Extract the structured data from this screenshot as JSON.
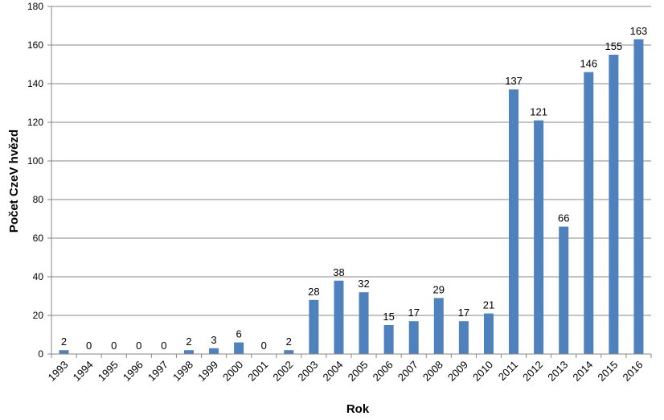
{
  "chart_data": {
    "type": "bar",
    "title": "",
    "xlabel": "Rok",
    "ylabel": "Počet CzeV hvězd",
    "ylim": [
      0,
      180
    ],
    "yticks": [
      "0",
      "20",
      "40",
      "60",
      "80",
      "100",
      "120",
      "140",
      "160",
      "180"
    ],
    "grid": "horizontal",
    "bar_color": "#4f81bd",
    "categories": [
      "1993",
      "1994",
      "1995",
      "1996",
      "1997",
      "1998",
      "1999",
      "2000",
      "2001",
      "2002",
      "2003",
      "2004",
      "2005",
      "2006",
      "2007",
      "2008",
      "2009",
      "2010",
      "2011",
      "2012",
      "2013",
      "2014",
      "2015",
      "2016"
    ],
    "values": [
      2,
      0,
      0,
      0,
      0,
      2,
      3,
      6,
      0,
      2,
      28,
      38,
      32,
      15,
      17,
      29,
      17,
      21,
      137,
      121,
      66,
      146,
      155,
      163
    ],
    "data_labels": [
      "2",
      "0",
      "0",
      "0",
      "0",
      "2",
      "3",
      "6",
      "0",
      "2",
      "28",
      "38",
      "32",
      "15",
      "17",
      "29",
      "17",
      "21",
      "137",
      "121",
      "66",
      "146",
      "155",
      "163"
    ]
  }
}
